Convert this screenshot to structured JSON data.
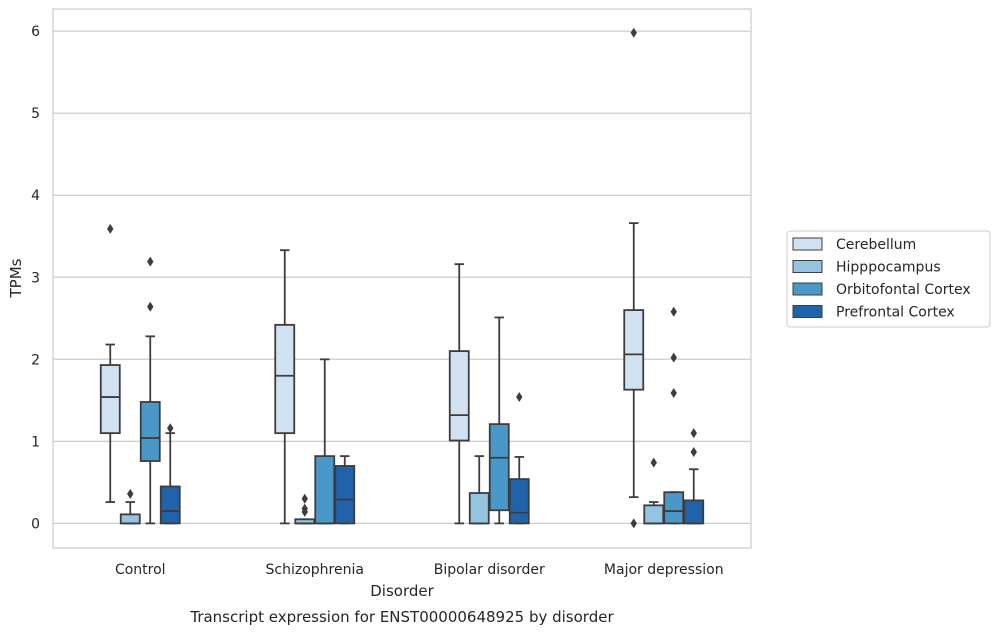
{
  "caption": "Transcript expression for ENST00000648925 by disorder",
  "chart_data": {
    "type": "boxplot",
    "title": "",
    "xlabel": "Disorder",
    "ylabel": "TPMs",
    "ylim": [
      -0.3,
      6.27
    ],
    "yticks": [
      0,
      1,
      2,
      3,
      4,
      5,
      6
    ],
    "grid": "horizontal",
    "legend_position": "right",
    "categories": [
      "Control",
      "Schizophrenia",
      "Bipolar disorder",
      "Major depression"
    ],
    "series": [
      {
        "name": "Cerebellum",
        "color": "#d0e1f2",
        "boxes": [
          {
            "whislo": 0.26,
            "q1": 1.1,
            "med": 1.54,
            "q3": 1.93,
            "whishi": 2.18,
            "fliers": [
              3.59
            ]
          },
          {
            "whislo": 0.0,
            "q1": 1.1,
            "med": 1.8,
            "q3": 2.42,
            "whishi": 3.33,
            "fliers": []
          },
          {
            "whislo": 0.0,
            "q1": 1.01,
            "med": 1.32,
            "q3": 2.1,
            "whishi": 3.16,
            "fliers": []
          },
          {
            "whislo": 0.32,
            "q1": 1.63,
            "med": 2.06,
            "q3": 2.6,
            "whishi": 3.66,
            "fliers": [
              5.98,
              0.0
            ]
          }
        ]
      },
      {
        "name": "Hipppocampus",
        "color": "#94c4df",
        "boxes": [
          {
            "whislo": 0.0,
            "q1": 0.0,
            "med": 0.0,
            "q3": 0.11,
            "whishi": 0.26,
            "fliers": [
              0.36
            ]
          },
          {
            "whislo": 0.0,
            "q1": 0.0,
            "med": 0.0,
            "q3": 0.05,
            "whishi": 0.05,
            "fliers": [
              0.14,
              0.18,
              0.3
            ]
          },
          {
            "whislo": 0.0,
            "q1": 0.0,
            "med": 0.0,
            "q3": 0.37,
            "whishi": 0.82,
            "fliers": []
          },
          {
            "whislo": 0.0,
            "q1": 0.0,
            "med": 0.0,
            "q3": 0.22,
            "whishi": 0.26,
            "fliers": [
              0.74
            ]
          }
        ]
      },
      {
        "name": "Orbitofontal Cortex",
        "color": "#4a98c9",
        "boxes": [
          {
            "whislo": 0.0,
            "q1": 0.76,
            "med": 1.04,
            "q3": 1.48,
            "whishi": 2.28,
            "fliers": [
              2.64,
              3.19
            ]
          },
          {
            "whislo": 0.0,
            "q1": 0.0,
            "med": 0.0,
            "q3": 0.82,
            "whishi": 2.0,
            "fliers": []
          },
          {
            "whislo": 0.0,
            "q1": 0.16,
            "med": 0.8,
            "q3": 1.21,
            "whishi": 2.51,
            "fliers": []
          },
          {
            "whislo": 0.0,
            "q1": 0.0,
            "med": 0.15,
            "q3": 0.38,
            "whishi": 0.38,
            "fliers": [
              1.59,
              2.02,
              2.58
            ]
          }
        ]
      },
      {
        "name": "Prefrontal Cortex",
        "color": "#2163aa",
        "boxes": [
          {
            "whislo": 0.0,
            "q1": 0.0,
            "med": 0.15,
            "q3": 0.45,
            "whishi": 1.1,
            "fliers": [
              1.16
            ]
          },
          {
            "whislo": 0.0,
            "q1": 0.0,
            "med": 0.29,
            "q3": 0.7,
            "whishi": 0.82,
            "fliers": []
          },
          {
            "whislo": 0.0,
            "q1": 0.0,
            "med": 0.13,
            "q3": 0.54,
            "whishi": 0.81,
            "fliers": [
              1.54
            ]
          },
          {
            "whislo": 0.0,
            "q1": 0.0,
            "med": 0.0,
            "q3": 0.28,
            "whishi": 0.66,
            "fliers": [
              0.87,
              1.1
            ]
          }
        ]
      }
    ]
  }
}
